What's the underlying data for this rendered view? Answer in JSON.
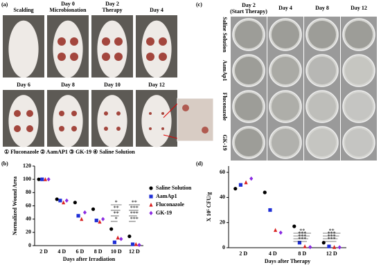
{
  "panel_a": {
    "label": "(a)",
    "photos": [
      {
        "title": "Scalding"
      },
      {
        "title": "Day 0",
        "subtitle": "Microbionation"
      },
      {
        "title": "Day 2",
        "subtitle": "Therapy"
      },
      {
        "title": "Day 4"
      },
      {
        "title": "Day 6"
      },
      {
        "title": "Day 8"
      },
      {
        "title": "Day 10"
      },
      {
        "title": "Day 12"
      }
    ],
    "legend": "① Fluconazole ② AamAP1 ③ GK-19 ④ Saline Solution"
  },
  "panel_c": {
    "label": "(c)",
    "columns": [
      {
        "title": "Day 2",
        "subtitle": "(Start Therapy)"
      },
      {
        "title": "Day 4"
      },
      {
        "title": "Day 8"
      },
      {
        "title": "Day 12"
      }
    ],
    "rows": [
      "Saline Solution",
      "AamAp1",
      "Fluconazole",
      "GK-19"
    ]
  },
  "chart_data": [
    {
      "type": "scatter",
      "label": "(b)",
      "y_label": "Normalized Wound Area",
      "x_label": "Days after Irradiation",
      "categories": [
        "2 D",
        "4 D",
        "6 D",
        "8 D",
        "10 D",
        "12 D"
      ],
      "ylim": [
        0,
        120
      ],
      "yticks": [
        0,
        20,
        40,
        60,
        80,
        100,
        120
      ],
      "legend": "right",
      "series": [
        {
          "name": "Saline Solution",
          "color": "#000000",
          "marker": "circle",
          "values": [
            100,
            70,
            65,
            55,
            25,
            14
          ]
        },
        {
          "name": "AamAp1",
          "color": "#1f2fd6",
          "marker": "square",
          "values": [
            100,
            68,
            45,
            38,
            5,
            2
          ]
        },
        {
          "name": "Fluconazole",
          "color": "#d92020",
          "marker": "triangle",
          "values": [
            100,
            65,
            40,
            36,
            12,
            2
          ]
        },
        {
          "name": "GK-19",
          "color": "#8a2be2",
          "marker": "diamond",
          "values": [
            100,
            68,
            50,
            40,
            10,
            1
          ]
        }
      ],
      "annotations": [
        "*",
        "**",
        "**",
        "*",
        "**",
        "***",
        "***",
        "***"
      ]
    },
    {
      "type": "scatter",
      "label": "(d)",
      "y_label": "X 10⁵ CFU/g",
      "x_label": "Days after Therapy",
      "categories": [
        "2 D",
        "4 D",
        "8 D",
        "12 D"
      ],
      "ylim": [
        0,
        65
      ],
      "yticks": [
        0,
        20,
        40,
        60
      ],
      "series": [
        {
          "name": "Saline Solution",
          "color": "#000000",
          "marker": "circle",
          "values": [
            47,
            44,
            17,
            4
          ]
        },
        {
          "name": "AamAp1",
          "color": "#1f2fd6",
          "marker": "square",
          "values": [
            50,
            30,
            4,
            1
          ]
        },
        {
          "name": "Fluconazole",
          "color": "#d92020",
          "marker": "triangle",
          "values": [
            52,
            14,
            1,
            0.5
          ]
        },
        {
          "name": "GK-19",
          "color": "#8a2be2",
          "marker": "diamond",
          "values": [
            55,
            12,
            0.5,
            0.3
          ]
        }
      ],
      "annotations": [
        "**",
        "***",
        "***",
        "***",
        "**",
        "***",
        "***",
        "***"
      ]
    }
  ]
}
